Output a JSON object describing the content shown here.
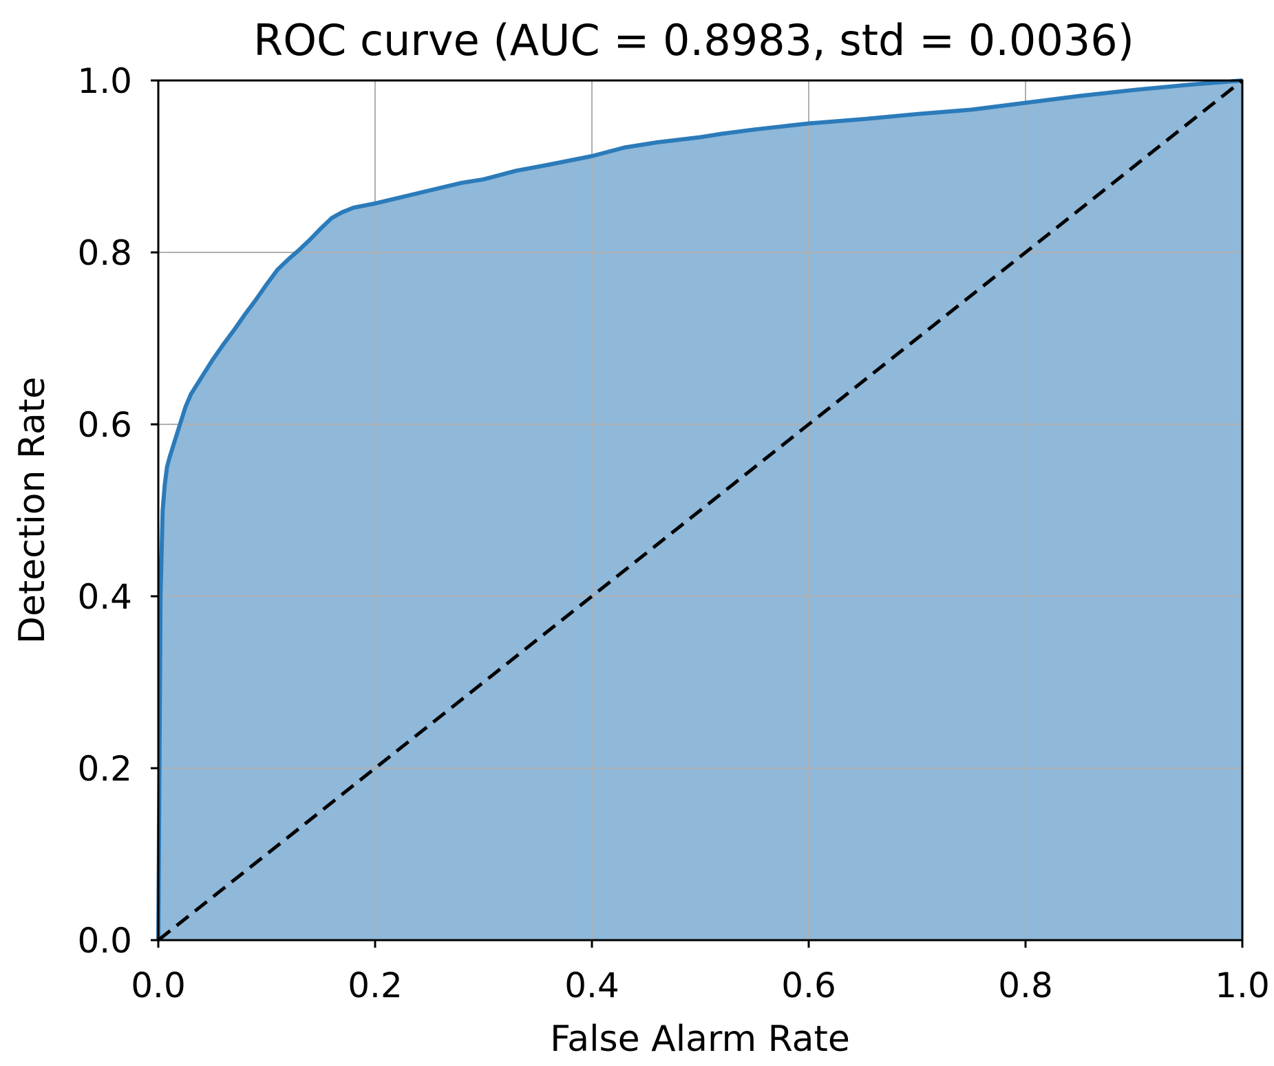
{
  "chart_data": {
    "type": "area",
    "title": "ROC curve (AUC = 0.8983, std = 0.0036)",
    "xlabel": "False Alarm Rate",
    "ylabel": "Detection Rate",
    "xlim": [
      0.0,
      1.0
    ],
    "ylim": [
      0.0,
      1.0
    ],
    "xticks": [
      "0.0",
      "0.2",
      "0.4",
      "0.6",
      "0.8",
      "1.0"
    ],
    "yticks": [
      "0.0",
      "0.2",
      "0.4",
      "0.6",
      "0.8",
      "1.0"
    ],
    "grid": true,
    "legend": "none",
    "colors": {
      "curve": "#2b7bba",
      "fill": "#8fb8d9",
      "diagonal": "#000000",
      "grid": "#b0b0b0"
    },
    "series": [
      {
        "style": "solid",
        "x": [
          0.0,
          0.002,
          0.004,
          0.006,
          0.008,
          0.01,
          0.015,
          0.02,
          0.025,
          0.03,
          0.04,
          0.05,
          0.06,
          0.07,
          0.08,
          0.09,
          0.1,
          0.11,
          0.12,
          0.13,
          0.14,
          0.15,
          0.16,
          0.17,
          0.18,
          0.2,
          0.22,
          0.25,
          0.28,
          0.3,
          0.33,
          0.36,
          0.4,
          0.43,
          0.46,
          0.5,
          0.52,
          0.55,
          0.6,
          0.65,
          0.7,
          0.75,
          0.8,
          0.85,
          0.9,
          0.95,
          1.0
        ],
        "y": [
          0.0,
          0.4,
          0.5,
          0.53,
          0.55,
          0.56,
          0.58,
          0.6,
          0.62,
          0.635,
          0.655,
          0.675,
          0.693,
          0.71,
          0.728,
          0.745,
          0.763,
          0.78,
          0.792,
          0.803,
          0.815,
          0.828,
          0.84,
          0.847,
          0.852,
          0.857,
          0.863,
          0.872,
          0.881,
          0.885,
          0.895,
          0.902,
          0.912,
          0.922,
          0.928,
          0.934,
          0.938,
          0.943,
          0.95,
          0.955,
          0.961,
          0.966,
          0.974,
          0.982,
          0.989,
          0.995,
          1.0
        ]
      },
      {
        "style": "dashed",
        "x": [
          0.0,
          1.0
        ],
        "y": [
          0.0,
          1.0
        ]
      }
    ]
  }
}
